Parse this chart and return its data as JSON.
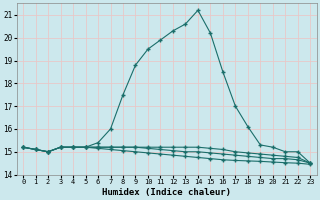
{
  "xlabel": "Humidex (Indice chaleur)",
  "x": [
    0,
    1,
    2,
    3,
    4,
    5,
    6,
    7,
    8,
    9,
    10,
    11,
    12,
    13,
    14,
    15,
    16,
    17,
    18,
    19,
    20,
    21,
    22,
    23
  ],
  "line1": [
    15.2,
    15.1,
    15.0,
    15.2,
    15.2,
    15.2,
    15.4,
    16.0,
    17.5,
    18.8,
    19.5,
    19.9,
    20.3,
    20.6,
    21.2,
    20.2,
    18.5,
    17.0,
    16.1,
    15.3,
    15.2,
    15.0,
    15.0,
    14.5
  ],
  "line2": [
    15.2,
    15.1,
    15.0,
    15.2,
    15.2,
    15.2,
    15.2,
    15.2,
    15.2,
    15.2,
    15.2,
    15.2,
    15.2,
    15.2,
    15.2,
    15.15,
    15.1,
    15.0,
    14.95,
    14.9,
    14.85,
    14.8,
    14.75,
    14.5
  ],
  "line3": [
    15.2,
    15.1,
    15.0,
    15.2,
    15.2,
    15.2,
    15.2,
    15.2,
    15.2,
    15.2,
    15.15,
    15.1,
    15.05,
    15.0,
    15.0,
    14.95,
    14.9,
    14.85,
    14.8,
    14.75,
    14.7,
    14.7,
    14.65,
    14.5
  ],
  "line4": [
    15.2,
    15.1,
    15.0,
    15.2,
    15.2,
    15.2,
    15.15,
    15.1,
    15.05,
    15.0,
    14.95,
    14.9,
    14.85,
    14.8,
    14.75,
    14.7,
    14.65,
    14.62,
    14.6,
    14.58,
    14.55,
    14.52,
    14.5,
    14.45
  ],
  "bg_color": "#cce8ed",
  "grid_color": "#e8c8c8",
  "line_color": "#1a6e6a",
  "ylim": [
    14.0,
    21.5
  ],
  "yticks": [
    14,
    15,
    16,
    17,
    18,
    19,
    20,
    21
  ],
  "xticks": [
    0,
    1,
    2,
    3,
    4,
    5,
    6,
    7,
    8,
    9,
    10,
    11,
    12,
    13,
    14,
    15,
    16,
    17,
    18,
    19,
    20,
    21,
    22,
    23
  ],
  "marker": "+",
  "markersize": 3.5,
  "linewidth": 0.8
}
